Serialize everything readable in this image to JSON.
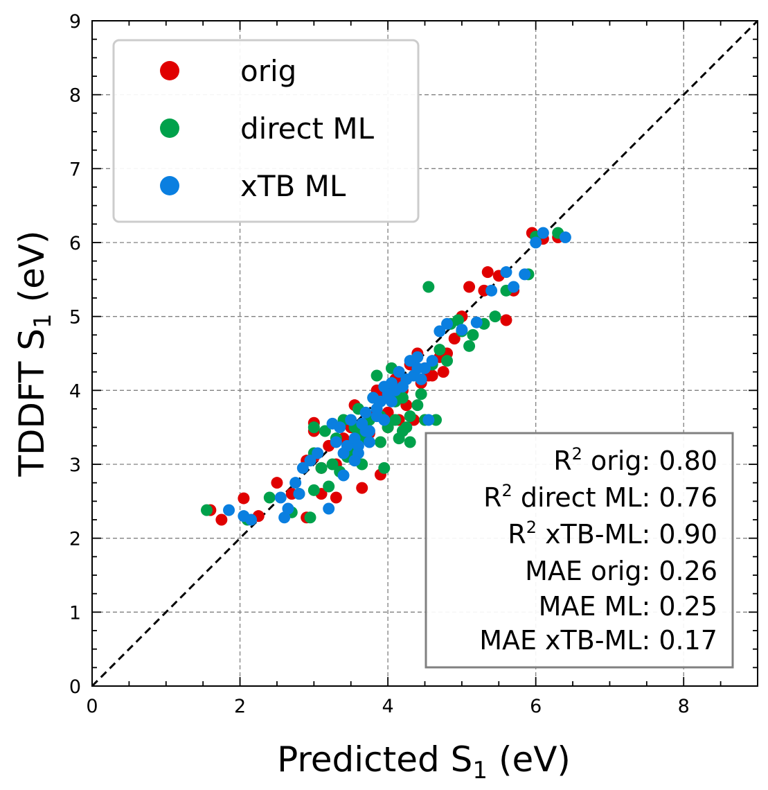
{
  "chart_data": {
    "type": "scatter",
    "xlabel_main": "Predicted S",
    "xlabel_sub": "1",
    "xlabel_unit": " (eV)",
    "ylabel_main": "TDDFT S",
    "ylabel_sub": "1",
    "ylabel_unit": " (eV)",
    "xlim": [
      0,
      9
    ],
    "ylim": [
      0,
      9
    ],
    "x_ticks": [
      "0",
      "2",
      "4",
      "6",
      "8"
    ],
    "y_ticks": [
      "0",
      "1",
      "2",
      "3",
      "4",
      "5",
      "6",
      "7",
      "8",
      "9"
    ],
    "grid": true,
    "reference_line": "y = x",
    "legend_position": "top-left",
    "colors": {
      "orig": "#e00000",
      "direct": "#00a14b",
      "xtb": "#0a7fe0"
    },
    "series": [
      {
        "name": "orig",
        "color": "#e00000",
        "points": [
          [
            1.6,
            2.38
          ],
          [
            1.75,
            2.25
          ],
          [
            2.05,
            2.54
          ],
          [
            2.25,
            2.3
          ],
          [
            2.5,
            2.75
          ],
          [
            2.7,
            2.6
          ],
          [
            2.9,
            3.05
          ],
          [
            2.9,
            2.28
          ],
          [
            3.0,
            3.56
          ],
          [
            3.0,
            3.45
          ],
          [
            3.1,
            2.95
          ],
          [
            3.1,
            2.6
          ],
          [
            3.2,
            3.25
          ],
          [
            3.3,
            2.55
          ],
          [
            3.3,
            3.0
          ],
          [
            3.4,
            3.35
          ],
          [
            3.5,
            3.5
          ],
          [
            3.55,
            3.8
          ],
          [
            3.6,
            3.3
          ],
          [
            3.65,
            2.68
          ],
          [
            3.7,
            3.5
          ],
          [
            3.8,
            3.65
          ],
          [
            3.85,
            4.0
          ],
          [
            3.9,
            2.86
          ],
          [
            3.95,
            3.9
          ],
          [
            4.0,
            3.7
          ],
          [
            4.05,
            3.95
          ],
          [
            4.1,
            4.15
          ],
          [
            4.15,
            3.6
          ],
          [
            4.2,
            4.0
          ],
          [
            4.3,
            4.35
          ],
          [
            4.35,
            3.6
          ],
          [
            4.4,
            4.5
          ],
          [
            4.45,
            4.1
          ],
          [
            4.5,
            4.3
          ],
          [
            4.6,
            4.2
          ],
          [
            4.7,
            4.45
          ],
          [
            4.8,
            4.5
          ],
          [
            4.9,
            4.7
          ],
          [
            5.0,
            5.0
          ],
          [
            5.1,
            5.4
          ],
          [
            5.3,
            5.35
          ],
          [
            5.35,
            5.6
          ],
          [
            5.5,
            5.55
          ],
          [
            5.6,
            4.95
          ],
          [
            5.7,
            5.35
          ],
          [
            5.95,
            6.13
          ],
          [
            6.1,
            6.05
          ],
          [
            6.3,
            6.07
          ],
          [
            3.0,
            3.1
          ],
          [
            3.45,
            3.2
          ],
          [
            3.75,
            3.42
          ],
          [
            4.0,
            3.5
          ],
          [
            4.25,
            3.8
          ],
          [
            4.55,
            4.2
          ],
          [
            4.75,
            4.25
          ]
        ]
      },
      {
        "name": "direct ML",
        "color": "#00a14b",
        "points": [
          [
            1.55,
            2.38
          ],
          [
            2.1,
            2.25
          ],
          [
            2.4,
            2.55
          ],
          [
            2.7,
            2.35
          ],
          [
            2.8,
            2.6
          ],
          [
            2.95,
            2.28
          ],
          [
            3.0,
            2.65
          ],
          [
            3.0,
            3.15
          ],
          [
            3.1,
            2.95
          ],
          [
            3.15,
            3.45
          ],
          [
            3.2,
            2.7
          ],
          [
            3.25,
            3.0
          ],
          [
            3.3,
            3.35
          ],
          [
            3.35,
            2.9
          ],
          [
            3.4,
            3.6
          ],
          [
            3.45,
            3.1
          ],
          [
            3.5,
            3.2
          ],
          [
            3.55,
            3.5
          ],
          [
            3.6,
            3.75
          ],
          [
            3.65,
            3.0
          ],
          [
            3.7,
            3.35
          ],
          [
            3.75,
            3.6
          ],
          [
            3.8,
            3.9
          ],
          [
            3.85,
            4.2
          ],
          [
            3.9,
            3.3
          ],
          [
            3.95,
            2.95
          ],
          [
            4.0,
            3.5
          ],
          [
            4.05,
            4.3
          ],
          [
            4.1,
            3.6
          ],
          [
            4.15,
            3.35
          ],
          [
            4.2,
            3.9
          ],
          [
            4.25,
            3.5
          ],
          [
            4.3,
            3.3
          ],
          [
            4.35,
            4.4
          ],
          [
            4.4,
            3.8
          ],
          [
            4.5,
            3.6
          ],
          [
            4.55,
            5.4
          ],
          [
            4.6,
            4.35
          ],
          [
            4.65,
            3.6
          ],
          [
            4.7,
            4.55
          ],
          [
            4.8,
            4.4
          ],
          [
            4.85,
            4.9
          ],
          [
            4.95,
            4.95
          ],
          [
            5.0,
            4.8
          ],
          [
            5.1,
            4.6
          ],
          [
            5.15,
            4.75
          ],
          [
            5.3,
            4.9
          ],
          [
            5.45,
            5.0
          ],
          [
            5.6,
            5.35
          ],
          [
            5.9,
            5.57
          ],
          [
            6.0,
            6.08
          ],
          [
            6.3,
            6.13
          ],
          [
            3.0,
            3.5
          ],
          [
            3.6,
            3.4
          ],
          [
            3.9,
            3.65
          ],
          [
            4.05,
            4.0
          ],
          [
            4.1,
            3.85
          ],
          [
            4.2,
            3.45
          ],
          [
            4.3,
            3.65
          ],
          [
            4.45,
            3.95
          ]
        ]
      },
      {
        "name": "xTB ML",
        "color": "#0a7fe0",
        "points": [
          [
            1.85,
            2.38
          ],
          [
            2.05,
            2.3
          ],
          [
            2.15,
            2.25
          ],
          [
            2.55,
            2.55
          ],
          [
            2.6,
            2.28
          ],
          [
            2.65,
            2.4
          ],
          [
            2.75,
            2.75
          ],
          [
            2.8,
            2.6
          ],
          [
            2.85,
            2.95
          ],
          [
            2.95,
            3.05
          ],
          [
            3.05,
            3.15
          ],
          [
            3.2,
            2.4
          ],
          [
            3.25,
            3.55
          ],
          [
            3.3,
            3.3
          ],
          [
            3.35,
            3.5
          ],
          [
            3.4,
            2.85
          ],
          [
            3.45,
            3.25
          ],
          [
            3.5,
            3.6
          ],
          [
            3.55,
            3.35
          ],
          [
            3.6,
            3.15
          ],
          [
            3.65,
            3.55
          ],
          [
            3.7,
            3.7
          ],
          [
            3.75,
            3.45
          ],
          [
            3.8,
            3.9
          ],
          [
            3.85,
            3.65
          ],
          [
            3.9,
            3.85
          ],
          [
            3.95,
            4.05
          ],
          [
            4.0,
            3.95
          ],
          [
            4.05,
            4.1
          ],
          [
            4.1,
            4.0
          ],
          [
            4.15,
            4.25
          ],
          [
            4.2,
            4.05
          ],
          [
            4.3,
            4.4
          ],
          [
            4.35,
            4.2
          ],
          [
            4.4,
            4.45
          ],
          [
            4.5,
            4.3
          ],
          [
            4.55,
            3.6
          ],
          [
            4.6,
            4.4
          ],
          [
            4.7,
            4.8
          ],
          [
            4.8,
            4.9
          ],
          [
            5.0,
            4.82
          ],
          [
            5.2,
            4.92
          ],
          [
            5.4,
            5.35
          ],
          [
            5.6,
            5.6
          ],
          [
            5.7,
            5.4
          ],
          [
            5.85,
            5.57
          ],
          [
            6.0,
            6.0
          ],
          [
            6.1,
            6.13
          ],
          [
            6.4,
            6.07
          ],
          [
            3.4,
            3.15
          ],
          [
            3.55,
            3.05
          ],
          [
            3.6,
            3.25
          ],
          [
            3.7,
            3.45
          ],
          [
            3.75,
            3.3
          ],
          [
            3.85,
            3.75
          ],
          [
            3.95,
            3.6
          ],
          [
            4.05,
            3.85
          ],
          [
            4.25,
            4.15
          ],
          [
            4.4,
            4.3
          ],
          [
            4.45,
            4.15
          ]
        ]
      }
    ]
  },
  "legend": {
    "items": [
      {
        "label": "orig",
        "color": "#e00000"
      },
      {
        "label": "direct ML",
        "color": "#00a14b"
      },
      {
        "label": "xTB ML",
        "color": "#0a7fe0"
      }
    ]
  },
  "stats_box": {
    "r2_orig": {
      "prefix": "R",
      "sup": "2",
      "rest": " orig: 0.80"
    },
    "r2_direct": {
      "prefix": "R",
      "sup": "2",
      "rest": " direct ML: 0.76"
    },
    "r2_xtb": {
      "prefix": "R",
      "sup": "2",
      "rest": " xTB-ML: 0.90"
    },
    "mae_orig": "MAE orig: 0.26",
    "mae_ml": "MAE ML: 0.25",
    "mae_xtb": "MAE xTB-ML: 0.17"
  }
}
